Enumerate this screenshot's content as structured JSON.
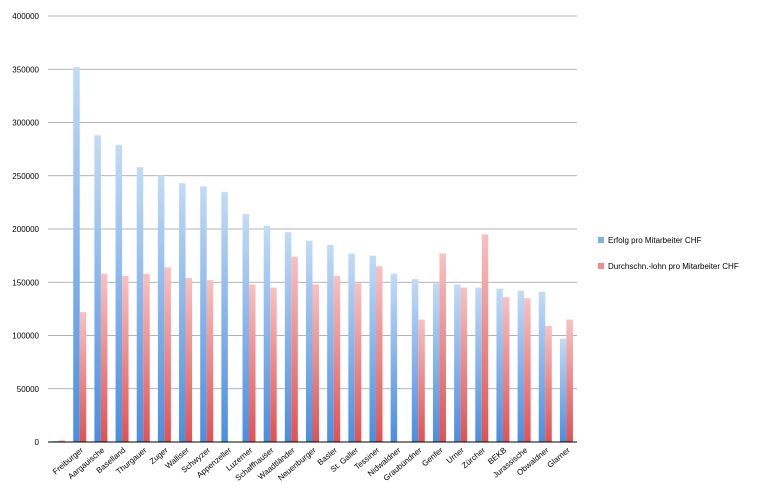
{
  "chart_data": {
    "type": "bar",
    "title": "",
    "xlabel": "",
    "ylabel": "",
    "ylim": [
      0,
      400000
    ],
    "yticks": [
      0,
      50000,
      100000,
      150000,
      200000,
      250000,
      300000,
      350000,
      400000
    ],
    "grid": true,
    "legend_position": "right",
    "categories": [
      "",
      "Freiburger",
      "Aargauische",
      "Baselland",
      "Thurgauer",
      "Zuger",
      "Walliser",
      "Schwyzer",
      "Appenzeller",
      "Luzerner",
      "Schaffhauser",
      "Waadtländer",
      "Neuenburger",
      "Basler",
      "St. Galler",
      "Tessiner",
      "Nidwaldner",
      "Graubündner",
      "Genfer",
      "Urner",
      "Zürcher",
      "BEKB",
      "Jurassische",
      "Obwaldner",
      "Glarner"
    ],
    "series": [
      {
        "name": "Erfolg pro Mitarbeiter CHF",
        "color": "#7fb0ea",
        "values": [
          1000,
          352000,
          288000,
          279000,
          258000,
          250000,
          243000,
          240000,
          235000,
          214000,
          203000,
          197000,
          189000,
          185000,
          177000,
          175000,
          158000,
          153000,
          149000,
          148000,
          145000,
          144000,
          142000,
          141000,
          97000
        ]
      },
      {
        "name": "Durchschn.-lohn pro Mitarbeiter CHF",
        "color": "#ef8e8e",
        "values": [
          1500,
          122000,
          158000,
          156000,
          158000,
          164000,
          154000,
          152000,
          null,
          148000,
          145000,
          174000,
          148000,
          156000,
          149000,
          165000,
          null,
          115000,
          177000,
          145000,
          195000,
          136000,
          135000,
          109000,
          115000
        ]
      }
    ]
  }
}
